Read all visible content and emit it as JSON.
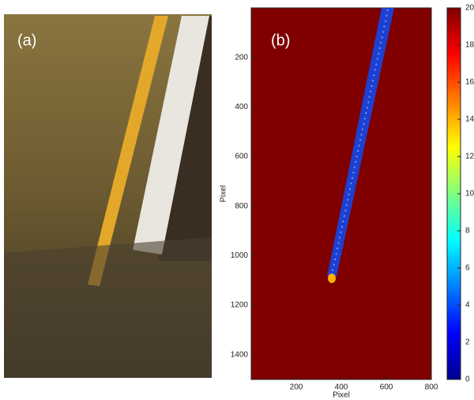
{
  "panel_a": {
    "label": "(a)"
  },
  "chart_data": {
    "type": "heatmap",
    "label": "(b)",
    "xlabel": "Pixel",
    "ylabel": "Pixel",
    "xlim": [
      0,
      800
    ],
    "xticks": [
      200,
      400,
      600,
      800
    ],
    "ylim": [
      1500,
      0
    ],
    "yticks": [
      200,
      400,
      600,
      800,
      1000,
      1200,
      1400
    ],
    "colormap": "jet",
    "colorbar": {
      "lim": [
        0,
        20
      ],
      "ticks": [
        0,
        2,
        4,
        6,
        8,
        10,
        12,
        14,
        16,
        18,
        20
      ]
    }
  }
}
